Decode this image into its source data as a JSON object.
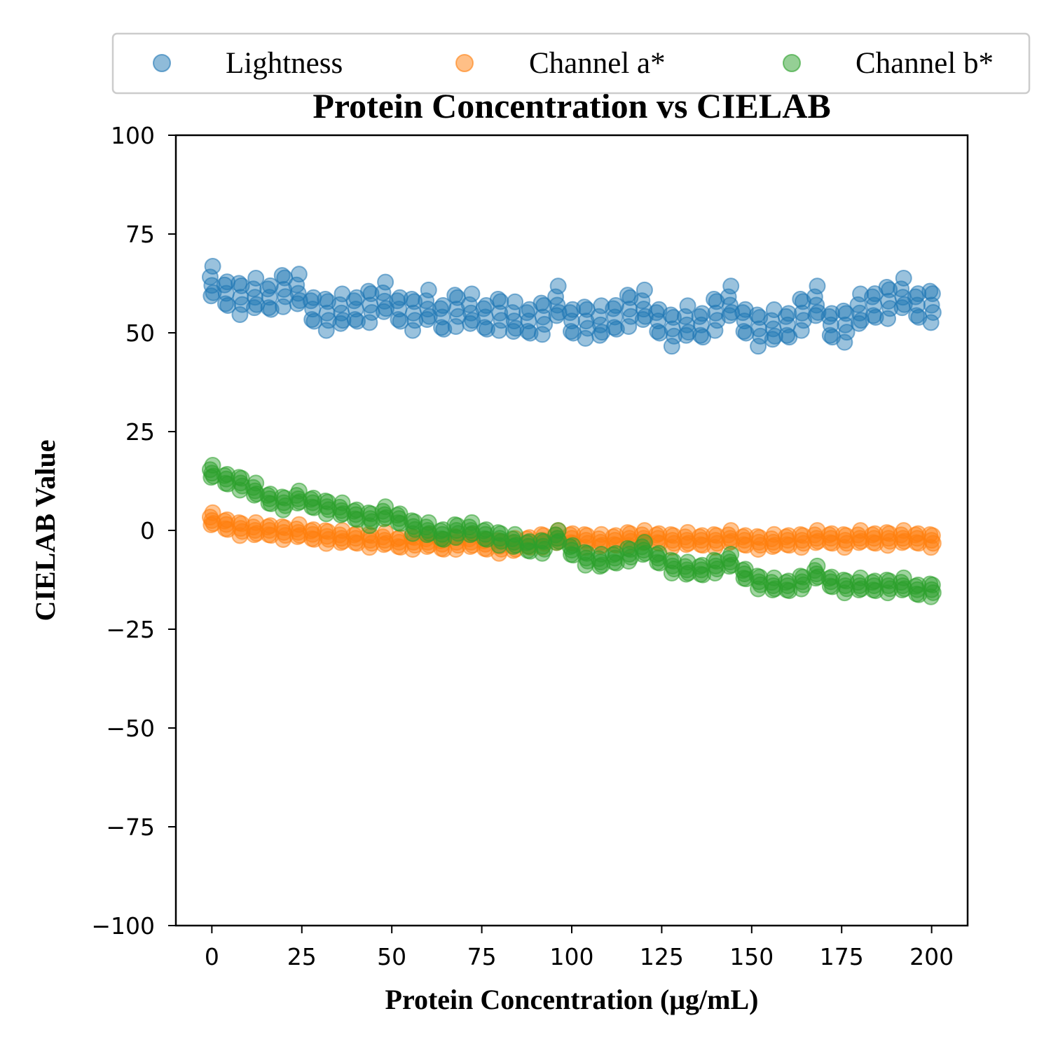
{
  "chart_data": {
    "type": "scatter",
    "title": "Protein Concentration vs CIELAB",
    "xlabel": "Protein Concentration (μg/mL)",
    "ylabel": "CIELAB Value",
    "xlim": [
      -10,
      210
    ],
    "ylim": [
      -100,
      100
    ],
    "xticks": [
      0,
      25,
      50,
      75,
      100,
      125,
      150,
      175,
      200
    ],
    "xtick_labels": [
      "0",
      "25",
      "50",
      "75",
      "100",
      "125",
      "150",
      "175",
      "200"
    ],
    "yticks": [
      -100,
      -75,
      -50,
      -25,
      0,
      25,
      50,
      75,
      100
    ],
    "ytick_labels": [
      "−100",
      "−75",
      "−50",
      "−25",
      "0",
      "25",
      "50",
      "75",
      "100"
    ],
    "grid": false,
    "legend_position": "top, above the axes",
    "x": [
      0,
      4,
      8,
      12,
      16,
      20,
      24,
      28,
      32,
      36,
      40,
      44,
      48,
      52,
      56,
      60,
      64,
      68,
      72,
      76,
      80,
      84,
      88,
      92,
      96,
      100,
      104,
      108,
      112,
      116,
      120,
      124,
      128,
      132,
      136,
      140,
      144,
      148,
      152,
      156,
      160,
      164,
      168,
      172,
      176,
      180,
      184,
      188,
      192,
      196,
      200
    ],
    "series": [
      {
        "name": "Lightness",
        "color": "#1f77b4",
        "values": [
          62,
          60,
          59,
          59,
          59,
          61,
          60,
          56,
          55,
          55,
          56,
          57,
          58,
          56,
          55,
          56,
          54,
          56,
          55,
          54,
          55,
          53,
          53,
          54,
          57,
          53,
          53,
          52,
          54,
          56,
          56,
          53,
          51,
          52,
          52,
          55,
          57,
          53,
          51,
          51,
          52,
          55,
          57,
          52,
          52,
          55,
          57,
          58,
          59,
          57,
          57
        ]
      },
      {
        "name": "Channel a*",
        "color": "#ff7f0e",
        "values": [
          2.5,
          1.5,
          0.5,
          0,
          0,
          -0.5,
          -0.5,
          -1,
          -1.5,
          -2,
          -2,
          -2.5,
          -2.5,
          -3,
          -3,
          -3,
          -3.5,
          -3,
          -3,
          -3.5,
          -4,
          -4,
          -3,
          -2.5,
          -2,
          -2,
          -2.5,
          -3,
          -2.5,
          -2,
          -2,
          -2,
          -2.5,
          -2.5,
          -2.5,
          -2.5,
          -2,
          -2.5,
          -3,
          -3,
          -2.5,
          -2.5,
          -2,
          -2,
          -2.5,
          -2,
          -2,
          -2,
          -2,
          -2,
          -2.5
        ]
      },
      {
        "name": "Channel b*",
        "color": "#2ca02c",
        "values": [
          14.5,
          13,
          12,
          10,
          8,
          7,
          8,
          7,
          6,
          5,
          4,
          3,
          4,
          3,
          1,
          0,
          -1,
          0,
          0,
          -1,
          -2,
          -3,
          -4,
          -4,
          -2,
          -5,
          -7,
          -8,
          -7,
          -6,
          -5,
          -7,
          -9,
          -10,
          -10,
          -9,
          -8,
          -11,
          -13,
          -14,
          -14,
          -13,
          -11,
          -13,
          -14,
          -14,
          -14,
          -14,
          -14,
          -15,
          -15
        ]
      }
    ]
  }
}
